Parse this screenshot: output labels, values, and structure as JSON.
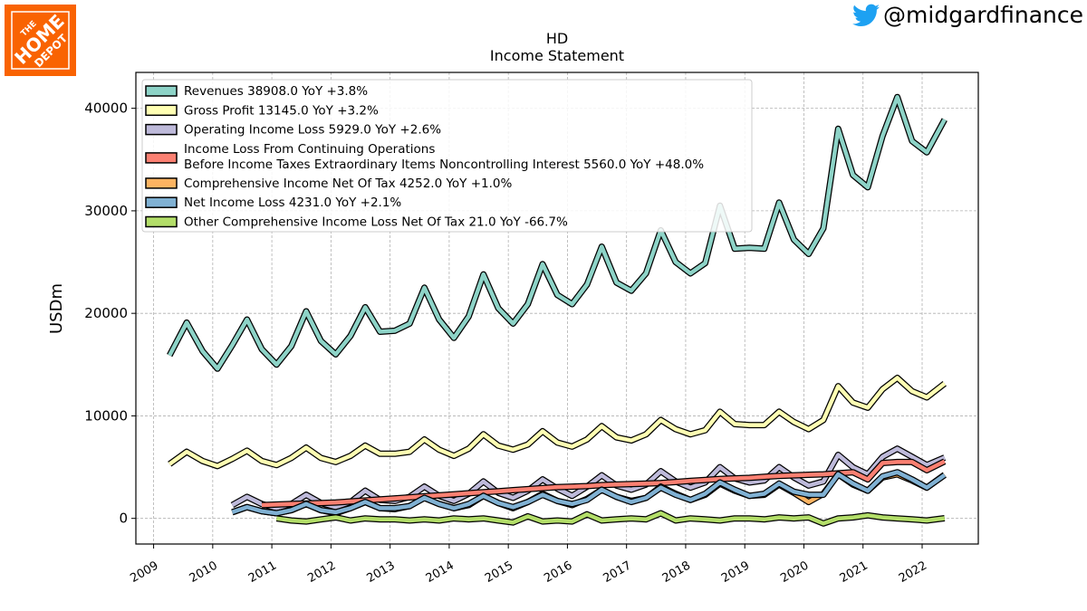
{
  "brand": {
    "logo_text_the": "THE",
    "logo_text_home": "HOME",
    "logo_text_depot": "DEPOT",
    "logo_color": "#f96302",
    "logo_icon": "home-depot-logo"
  },
  "social": {
    "icon": "twitter-bird-icon",
    "handle": "@midgardfinance",
    "icon_color": "#1da1f2"
  },
  "chart_data": {
    "type": "line",
    "title": "HD",
    "subtitle": "Income Statement",
    "ylabel": "USDm",
    "xlabel": "",
    "xlim": [
      2008.7,
      2022.95
    ],
    "ylim": [
      -2500,
      43500
    ],
    "yticks": [
      0,
      10000,
      20000,
      30000,
      40000
    ],
    "xticks": [
      2009,
      2010,
      2011,
      2012,
      2013,
      2014,
      2015,
      2016,
      2017,
      2018,
      2019,
      2020,
      2021,
      2022
    ],
    "grid": true,
    "legend_position": "top-left",
    "series": [
      {
        "name": "Revenues",
        "legend": "Revenues  38908.0 YoY +3.8%",
        "color": "#8dd3c7",
        "x": [
          2009.27,
          2009.56,
          2009.83,
          2010.08,
          2010.33,
          2010.58,
          2010.83,
          2011.08,
          2011.33,
          2011.58,
          2011.83,
          2012.08,
          2012.33,
          2012.58,
          2012.83,
          2013.08,
          2013.33,
          2013.58,
          2013.83,
          2014.08,
          2014.33,
          2014.58,
          2014.83,
          2015.08,
          2015.33,
          2015.58,
          2015.83,
          2016.08,
          2016.33,
          2016.58,
          2016.83,
          2017.08,
          2017.33,
          2017.58,
          2017.83,
          2018.08,
          2018.33,
          2018.58,
          2018.83,
          2019.08,
          2019.33,
          2019.58,
          2019.83,
          2020.08,
          2020.33,
          2020.58,
          2020.83,
          2021.08,
          2021.33,
          2021.58,
          2021.83,
          2022.08,
          2022.38
        ],
        "y": [
          15900,
          19100,
          16300,
          14600,
          16900,
          19400,
          16500,
          15000,
          16800,
          20200,
          17300,
          16000,
          17800,
          20600,
          18200,
          18300,
          19000,
          22500,
          19400,
          17600,
          19700,
          23800,
          20500,
          19000,
          20900,
          24800,
          21800,
          20900,
          22800,
          26500,
          23000,
          22200,
          23900,
          28100,
          25000,
          23900,
          24900,
          30500,
          26300,
          26400,
          26300,
          30800,
          27200,
          25800,
          28300,
          38000,
          33500,
          32300,
          37300,
          41100,
          36800,
          35700,
          38900
        ]
      },
      {
        "name": "Gross Profit",
        "legend": "Gross Profit  13145.0 YoY +3.2%",
        "color": "#ffffb3",
        "x": [
          2009.27,
          2009.56,
          2009.83,
          2010.08,
          2010.33,
          2010.58,
          2010.83,
          2011.08,
          2011.33,
          2011.58,
          2011.83,
          2012.08,
          2012.33,
          2012.58,
          2012.83,
          2013.08,
          2013.33,
          2013.58,
          2013.83,
          2014.08,
          2014.33,
          2014.58,
          2014.83,
          2015.08,
          2015.33,
          2015.58,
          2015.83,
          2016.08,
          2016.33,
          2016.58,
          2016.83,
          2017.08,
          2017.33,
          2017.58,
          2017.83,
          2018.08,
          2018.33,
          2018.58,
          2018.83,
          2019.08,
          2019.33,
          2019.58,
          2019.83,
          2020.08,
          2020.33,
          2020.58,
          2020.83,
          2021.08,
          2021.33,
          2021.58,
          2021.83,
          2022.08,
          2022.38
        ],
        "y": [
          5300,
          6500,
          5600,
          5100,
          5800,
          6600,
          5600,
          5200,
          5900,
          6900,
          5900,
          5500,
          6100,
          7100,
          6300,
          6300,
          6500,
          7700,
          6700,
          6100,
          6800,
          8200,
          7100,
          6700,
          7200,
          8500,
          7400,
          7000,
          7700,
          9000,
          7900,
          7600,
          8200,
          9600,
          8700,
          8200,
          8600,
          10400,
          9200,
          9100,
          9100,
          10400,
          9400,
          8700,
          9600,
          12900,
          11300,
          10800,
          12600,
          13700,
          12400,
          11800,
          13150
        ]
      },
      {
        "name": "Operating Income Loss",
        "legend": "Operating Income Loss  5929.0 YoY +2.6%",
        "color": "#bebada",
        "x": [
          2010.33,
          2010.58,
          2010.83,
          2011.08,
          2011.33,
          2011.58,
          2011.83,
          2012.08,
          2012.33,
          2012.58,
          2012.83,
          2013.08,
          2013.33,
          2013.58,
          2013.83,
          2014.08,
          2014.33,
          2014.58,
          2014.83,
          2015.08,
          2015.33,
          2015.58,
          2015.83,
          2016.08,
          2016.33,
          2016.58,
          2016.83,
          2017.08,
          2017.33,
          2017.58,
          2017.83,
          2018.08,
          2018.33,
          2018.58,
          2018.83,
          2019.08,
          2019.33,
          2019.58,
          2019.83,
          2020.08,
          2020.33,
          2020.58,
          2020.83,
          2021.08,
          2021.33,
          2021.58,
          2021.83,
          2022.08,
          2022.38
        ],
        "y": [
          1300,
          2100,
          1400,
          1000,
          1400,
          2300,
          1500,
          1100,
          1600,
          2700,
          1800,
          1700,
          2100,
          3100,
          2200,
          1700,
          2400,
          3600,
          2500,
          2000,
          2700,
          3800,
          2900,
          2200,
          3100,
          4200,
          3200,
          2800,
          3300,
          4600,
          3600,
          3000,
          3500,
          5000,
          3900,
          3500,
          3700,
          5000,
          4000,
          3200,
          3600,
          6200,
          5000,
          4300,
          6000,
          6800,
          6000,
          5200,
          5930
        ]
      },
      {
        "name": "Income Loss From Continuing Operations Before Income Taxes Extraordinary Items Noncontrolling Interest",
        "legend_line1": "Income Loss From Continuing Operations",
        "legend_line2": "Before Income Taxes Extraordinary Items Noncontrolling Interest  5560.0 YoY +48.0%",
        "color": "#fb8072",
        "x": [
          2010.83,
          2011.08,
          2011.33,
          2011.58,
          2011.83,
          2012.08,
          2012.33,
          2012.58,
          2012.83,
          2013.08,
          2013.33,
          2013.58,
          2013.83,
          2014.08,
          2014.33,
          2014.58,
          2014.83,
          2015.08,
          2015.33,
          2015.58,
          2015.83,
          2016.08,
          2016.33,
          2016.58,
          2016.83,
          2017.08,
          2017.33,
          2017.58,
          2017.83,
          2018.08,
          2018.33,
          2018.58,
          2018.83,
          2019.08,
          2019.33,
          2019.58,
          2019.83,
          2020.08,
          2020.33,
          2020.58,
          2020.83,
          2021.08,
          2021.33,
          2021.58,
          2021.83,
          2022.08,
          2022.38
        ],
        "y": [
          1300,
          1350,
          1400,
          1450,
          1500,
          1550,
          1650,
          1750,
          1850,
          1950,
          2050,
          2150,
          2250,
          2350,
          2450,
          2550,
          2650,
          2750,
          2850,
          2950,
          3050,
          3100,
          3150,
          3250,
          3300,
          3350,
          3400,
          3450,
          3550,
          3650,
          3750,
          3850,
          3900,
          3950,
          4050,
          4150,
          4200,
          4250,
          4300,
          4400,
          4500,
          3800,
          5400,
          5500,
          5500,
          4700,
          5560
        ]
      },
      {
        "name": "Comprehensive Income Net Of Tax",
        "legend": "Comprehensive Income Net Of Tax  4252.0 YoY +1.0%",
        "color": "#fdb462",
        "x": [
          2010.33,
          2010.58,
          2010.83,
          2011.08,
          2011.33,
          2011.58,
          2011.83,
          2012.08,
          2012.33,
          2012.58,
          2012.83,
          2013.08,
          2013.33,
          2013.58,
          2013.83,
          2014.08,
          2014.33,
          2014.58,
          2014.83,
          2015.08,
          2015.33,
          2015.58,
          2015.83,
          2016.08,
          2016.33,
          2016.58,
          2016.83,
          2017.08,
          2017.33,
          2017.58,
          2017.83,
          2018.08,
          2018.33,
          2018.58,
          2018.83,
          2019.08,
          2019.33,
          2019.58,
          2019.83,
          2020.08,
          2020.33,
          2020.58,
          2020.83,
          2021.08,
          2021.33,
          2021.58,
          2021.83,
          2022.08,
          2022.38
        ],
        "y": [
          600,
          1100,
          700,
          500,
          800,
          1400,
          800,
          500,
          1000,
          1600,
          1000,
          900,
          1200,
          2000,
          1400,
          1000,
          1300,
          2200,
          1500,
          1000,
          1600,
          2400,
          1700,
          1300,
          1900,
          2800,
          2100,
          1700,
          2000,
          3100,
          2400,
          1800,
          2300,
          3400,
          2700,
          2200,
          2300,
          3300,
          2500,
          1600,
          2400,
          4300,
          3300,
          2700,
          4000,
          4300,
          3700,
          3000,
          4250
        ]
      },
      {
        "name": "Net Income Loss",
        "legend": "Net Income Loss  4231.0 YoY +2.1%",
        "color": "#80b1d3",
        "x": [
          2010.33,
          2010.58,
          2010.83,
          2011.08,
          2011.33,
          2011.58,
          2011.83,
          2012.08,
          2012.33,
          2012.58,
          2012.83,
          2013.08,
          2013.33,
          2013.58,
          2013.83,
          2014.08,
          2014.33,
          2014.58,
          2014.83,
          2015.08,
          2015.33,
          2015.58,
          2015.83,
          2016.08,
          2016.33,
          2016.58,
          2016.83,
          2017.08,
          2017.33,
          2017.58,
          2017.83,
          2018.08,
          2018.33,
          2018.58,
          2018.83,
          2019.08,
          2019.33,
          2019.58,
          2019.83,
          2020.08,
          2020.33,
          2020.58,
          2020.83,
          2021.08,
          2021.33,
          2021.58,
          2021.83,
          2022.08,
          2022.38
        ],
        "y": [
          600,
          1100,
          700,
          500,
          800,
          1400,
          800,
          600,
          1000,
          1600,
          1000,
          1000,
          1200,
          2000,
          1400,
          1000,
          1400,
          2200,
          1500,
          1100,
          1600,
          2300,
          1700,
          1400,
          1800,
          2800,
          2100,
          1600,
          2000,
          3000,
          2300,
          1800,
          2400,
          3500,
          2800,
          2200,
          2400,
          3400,
          2600,
          2300,
          2300,
          4300,
          3400,
          2700,
          4100,
          4500,
          3800,
          3000,
          4230
        ]
      },
      {
        "name": "Other Comprehensive Income Loss Net Of Tax",
        "legend": "Other Comprehensive Income Loss Net Of Tax  21.0 YoY -66.7%",
        "color": "#b3de69",
        "x": [
          2011.08,
          2011.33,
          2011.58,
          2011.83,
          2012.08,
          2012.33,
          2012.58,
          2012.83,
          2013.08,
          2013.33,
          2013.58,
          2013.83,
          2014.08,
          2014.33,
          2014.58,
          2014.83,
          2015.08,
          2015.33,
          2015.58,
          2015.83,
          2016.08,
          2016.33,
          2016.58,
          2016.83,
          2017.08,
          2017.33,
          2017.58,
          2017.83,
          2018.08,
          2018.33,
          2018.58,
          2018.83,
          2019.08,
          2019.33,
          2019.58,
          2019.83,
          2020.08,
          2020.33,
          2020.58,
          2020.83,
          2021.08,
          2021.33,
          2021.58,
          2021.83,
          2022.08,
          2022.38
        ],
        "y": [
          0,
          -200,
          -300,
          -100,
          100,
          -200,
          0,
          -100,
          -100,
          -200,
          -100,
          -200,
          0,
          -100,
          0,
          -200,
          -400,
          200,
          -300,
          -200,
          -300,
          400,
          -200,
          -100,
          0,
          -100,
          500,
          -200,
          0,
          -100,
          -200,
          0,
          0,
          -100,
          100,
          0,
          100,
          -500,
          0,
          100,
          300,
          100,
          0,
          -100,
          -200,
          20
        ]
      }
    ]
  }
}
